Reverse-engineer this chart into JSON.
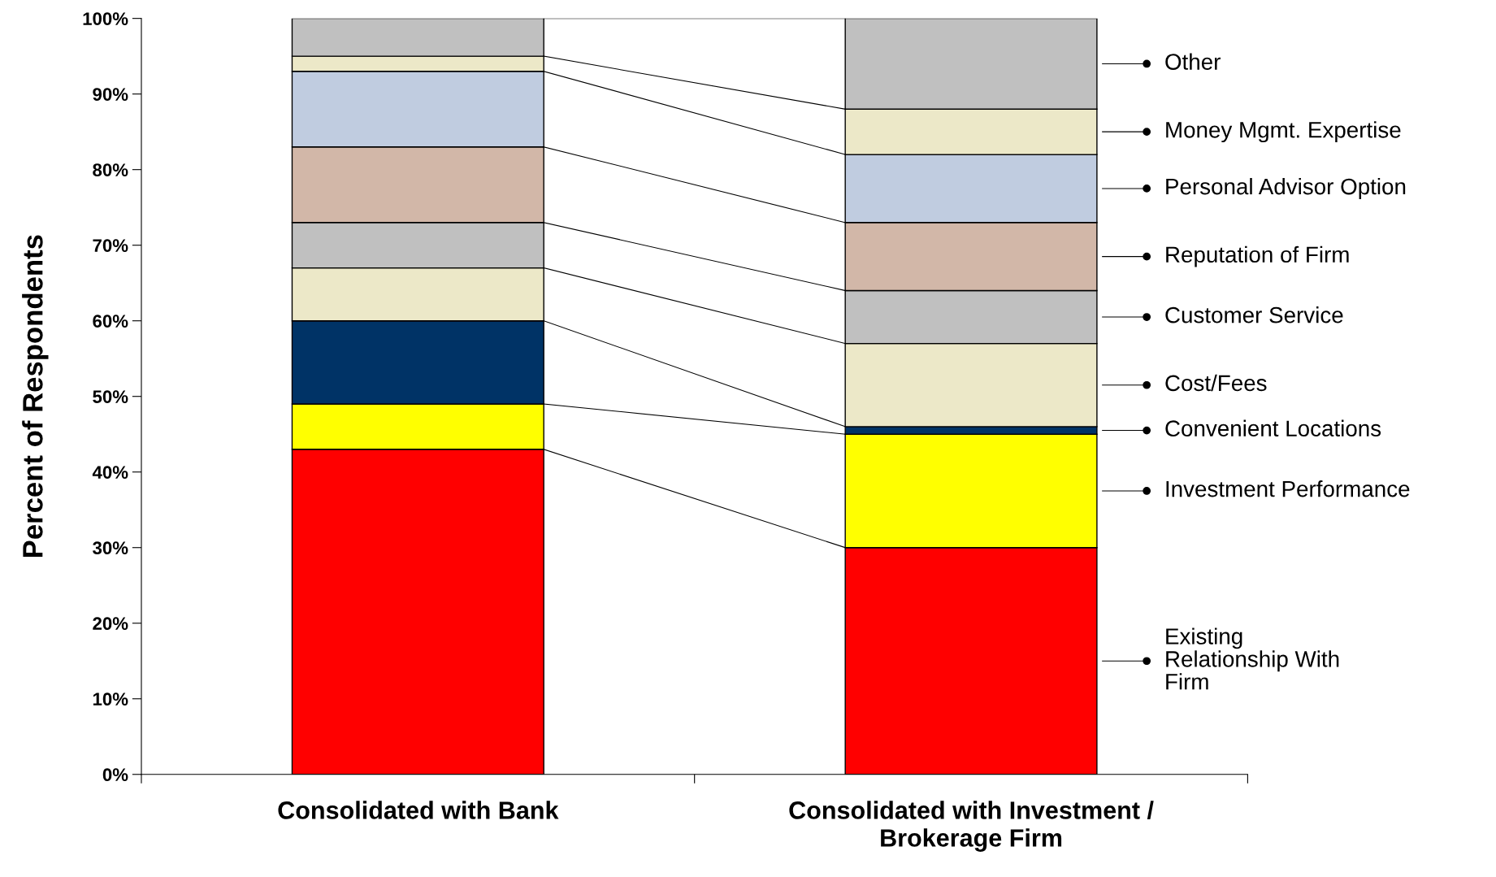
{
  "chart_data": {
    "type": "bar",
    "stacked": true,
    "ylabel": "Percent of Respondents",
    "categories": [
      "Consolidated with Bank",
      "Consolidated with Investment / Brokerage Firm"
    ],
    "ylim": [
      0,
      100
    ],
    "yticks": [
      {
        "value": 0,
        "label": "0%"
      },
      {
        "value": 10,
        "label": "10%"
      },
      {
        "value": 20,
        "label": "20%"
      },
      {
        "value": 30,
        "label": "30%"
      },
      {
        "value": 40,
        "label": "40%"
      },
      {
        "value": 50,
        "label": "50%"
      },
      {
        "value": 60,
        "label": "60%"
      },
      {
        "value": 70,
        "label": "70%"
      },
      {
        "value": 80,
        "label": "80%"
      },
      {
        "value": 90,
        "label": "90%"
      },
      {
        "value": 100,
        "label": "100%"
      }
    ],
    "grid": false,
    "legend": "right",
    "series": [
      {
        "name": "Existing Relationship With Firm",
        "color": "#ff0000",
        "values": [
          43,
          30
        ]
      },
      {
        "name": "Investment Performance",
        "color": "#ffff00",
        "values": [
          6,
          15
        ]
      },
      {
        "name": "Convenient Locations",
        "color": "#003366",
        "values": [
          11,
          1
        ]
      },
      {
        "name": "Cost/Fees",
        "color": "#ece8c8",
        "values": [
          7,
          11
        ]
      },
      {
        "name": "Customer Service",
        "color": "#c0c0c0",
        "values": [
          6,
          7
        ]
      },
      {
        "name": "Reputation of Firm",
        "color": "#d2b7a8",
        "values": [
          10,
          9
        ]
      },
      {
        "name": "Personal Advisor Option",
        "color": "#c0cce0",
        "values": [
          10,
          9
        ]
      },
      {
        "name": "Money Mgmt. Expertise",
        "color": "#ece8c8",
        "values": [
          2,
          6
        ]
      },
      {
        "name": "Other",
        "color": "#c0c0c0",
        "values": [
          5,
          12
        ]
      }
    ]
  }
}
